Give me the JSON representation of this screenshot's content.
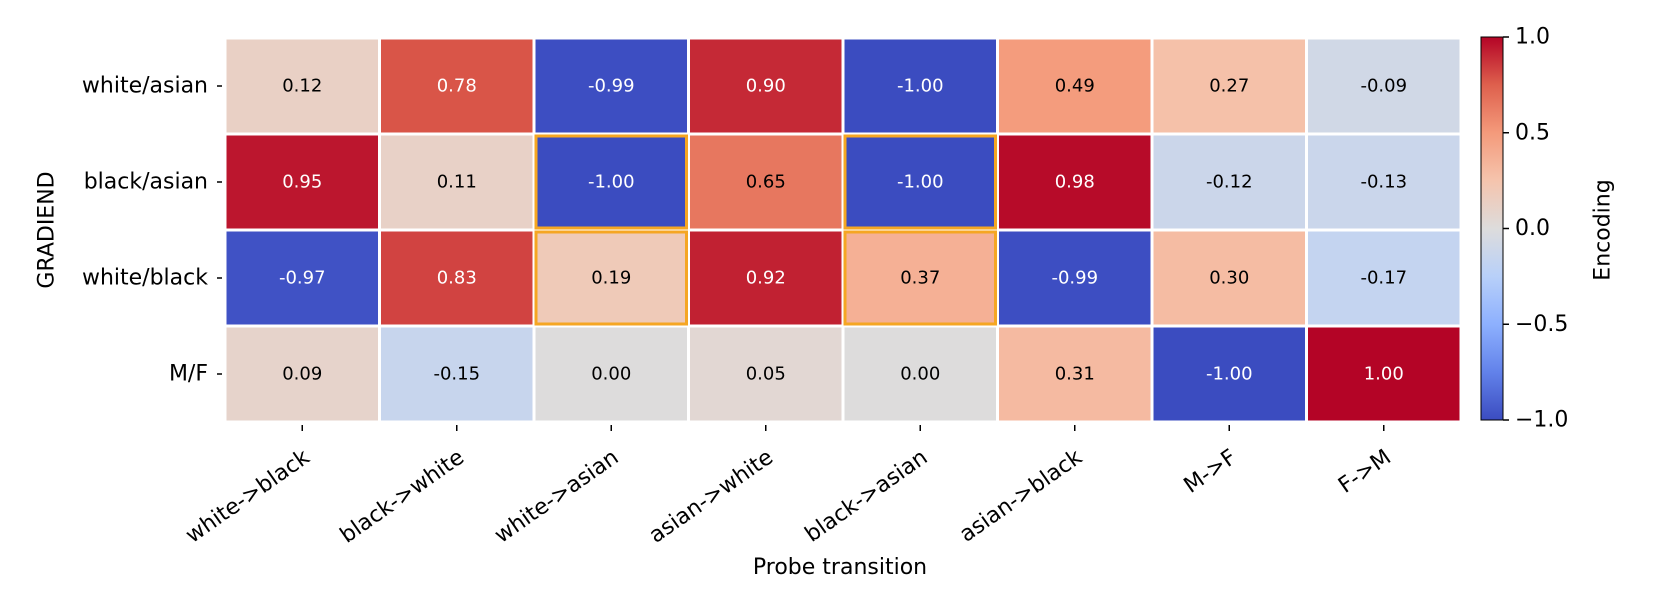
{
  "chart_data": {
    "type": "heatmap",
    "title": "",
    "xlabel": "Probe transition",
    "ylabel": "GRADIEND",
    "x_categories": [
      "white->black",
      "black->white",
      "white->asian",
      "asian->white",
      "black->asian",
      "asian->black",
      "M->F",
      "F->M"
    ],
    "y_categories": [
      "white/asian",
      "black/asian",
      "white/black",
      "M/F"
    ],
    "values": [
      [
        0.12,
        0.78,
        -0.99,
        0.9,
        -1.0,
        0.49,
        0.27,
        -0.09
      ],
      [
        0.95,
        0.11,
        -1.0,
        0.65,
        -1.0,
        0.98,
        -0.12,
        -0.13
      ],
      [
        -0.97,
        0.83,
        0.19,
        0.92,
        0.37,
        -0.99,
        0.3,
        -0.17
      ],
      [
        0.09,
        -0.15,
        0.0,
        0.05,
        0.0,
        0.31,
        -1.0,
        1.0
      ]
    ],
    "cell_labels": [
      [
        "0.12",
        "0.78",
        "-0.99",
        "0.90",
        "-1.00",
        "0.49",
        "0.27",
        "-0.09"
      ],
      [
        "0.95",
        "0.11",
        "-1.00",
        "0.65",
        "-1.00",
        "0.98",
        "-0.12",
        "-0.13"
      ],
      [
        "-0.97",
        "0.83",
        "0.19",
        "0.92",
        "0.37",
        "-0.99",
        "0.30",
        "-0.17"
      ],
      [
        "0.09",
        "-0.15",
        "0.00",
        "0.05",
        "0.00",
        "0.31",
        "-1.00",
        "1.00"
      ]
    ],
    "highlighted_cells": [
      [
        1,
        2
      ],
      [
        1,
        4
      ],
      [
        2,
        2
      ],
      [
        2,
        4
      ]
    ],
    "highlight_color": "#f5a623",
    "colormap": "coolwarm",
    "vmin": -1.0,
    "vmax": 1.0,
    "colorbar": {
      "label": "Encoding",
      "ticks": [
        1.0,
        0.5,
        0.0,
        -0.5,
        -1.0
      ],
      "tick_labels": [
        "1.0",
        "0.5",
        "0.0",
        "−0.5",
        "−1.0"
      ]
    },
    "grid": false
  }
}
